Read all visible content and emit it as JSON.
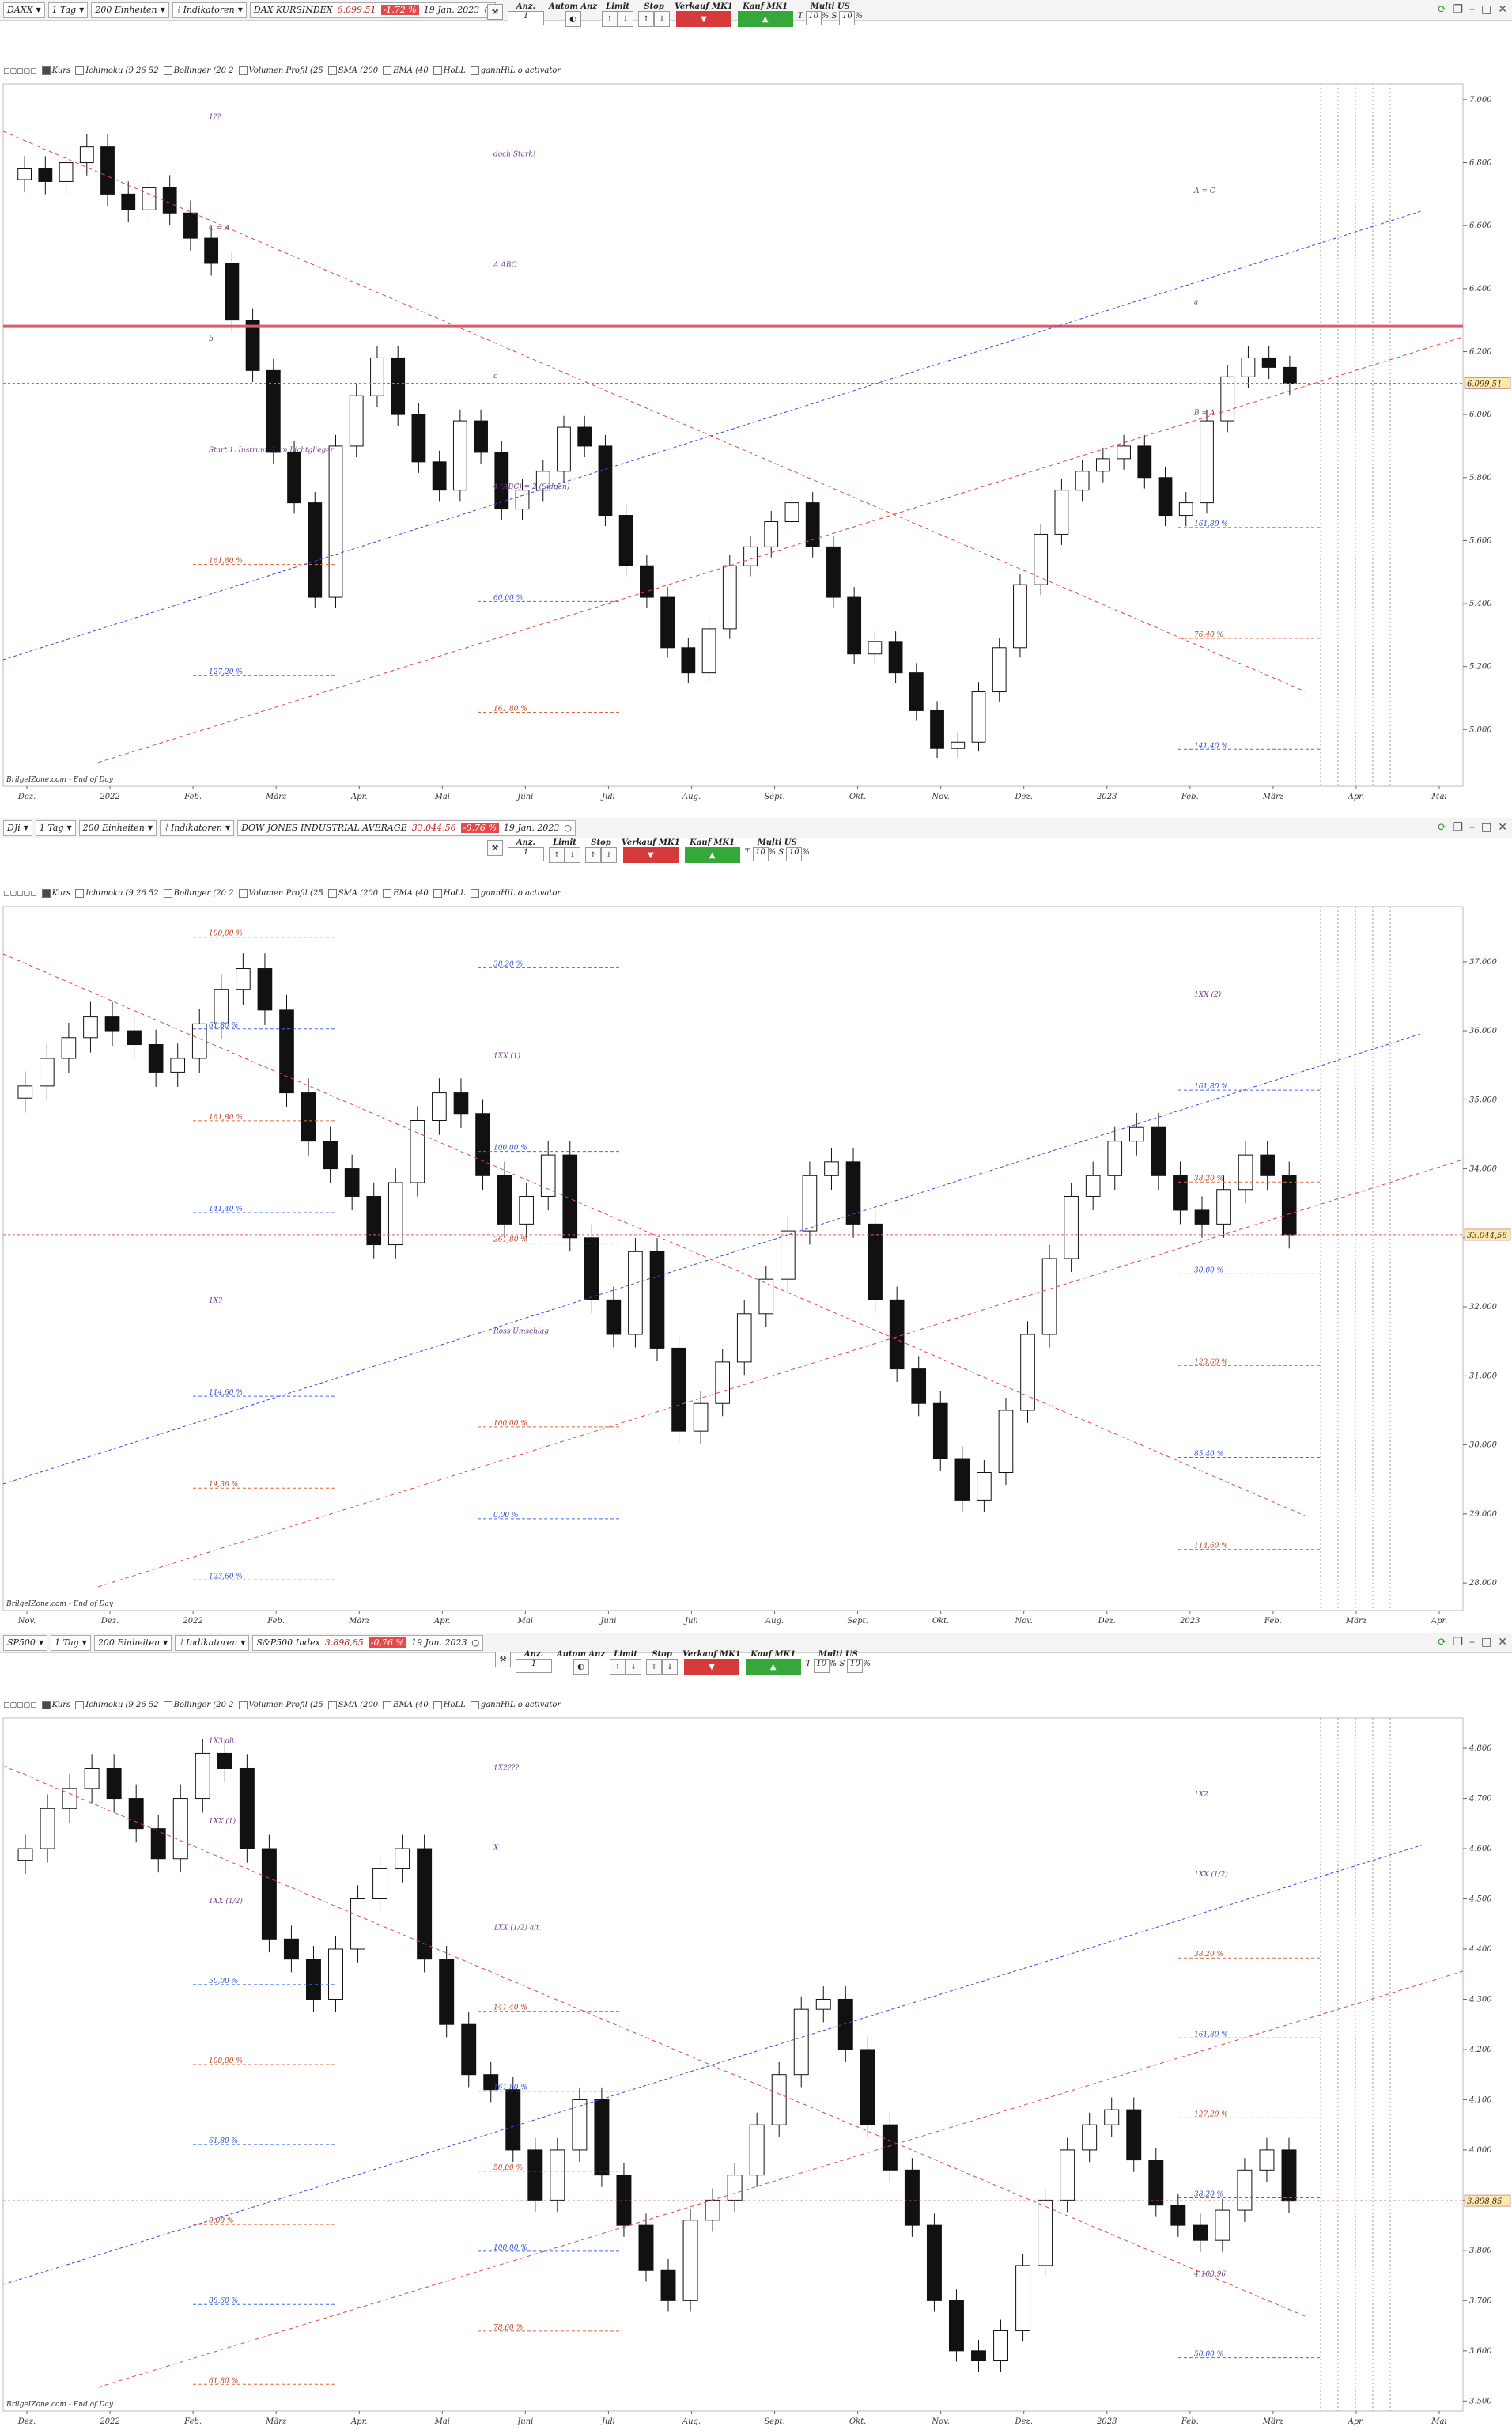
{
  "panels": [
    {
      "symbol": "DAXX",
      "interval": "1 Tag",
      "units": "200 Einheiten",
      "indicators_btn": "Indikatoren",
      "title": "DAX KURSINDEX",
      "last": "6.099,51",
      "change": "-1,72 %",
      "date": "19 Jan. 2023",
      "order": {
        "anz": "Anz.",
        "autom": "Autom Anz",
        "limit": "Limit",
        "stop": "Stop",
        "sell": "Verkauf MK1",
        "buy": "Kauf MK1",
        "multi": "Multi US",
        "qty": "1",
        "t_lbl": "T",
        "t_val": "10",
        "s_lbl": "S",
        "s_val": "10",
        "pct": "%"
      },
      "indicators": [
        "Kurs",
        "Ichimoku (9 26 52",
        "Bollinger (20 2",
        "Volumen Profil (25",
        "SMA (200",
        "EMA (40",
        "HoLL",
        "gannHiL o activator"
      ],
      "brand": "BrilgeIZone.com - End of Day",
      "current_label": "6.099,51",
      "annotations": [
        "1??",
        "doch Stark!",
        "A = C",
        "C = A",
        "A ABC",
        "a",
        "b",
        "c",
        "B = A",
        "Start 1. Instrum.-1, m.Lichtglieger",
        "4 (ABC) = 2 (Sidgen)",
        "161,80 %",
        "161,80 %",
        "60,00 %",
        "76,40 %",
        "127,20 %",
        "161,80 %",
        "141,40 %"
      ],
      "chart_data": {
        "type": "candlestick",
        "title": "DAX KURSINDEX",
        "x_ticks": [
          "Dez.",
          "2022",
          "Feb.",
          "März",
          "Apr.",
          "Mai",
          "Juni",
          "Juli",
          "Aug.",
          "Sept.",
          "Okt.",
          "Nov.",
          "Dez.",
          "2023",
          "Feb.",
          "März",
          "Apr.",
          "Mai"
        ],
        "y_ticks": [
          7000,
          6800,
          6600,
          6400,
          6200,
          6000,
          5800,
          5600,
          5400,
          5200,
          5000
        ],
        "ylim": [
          4820,
          7050
        ],
        "resistance_level": 6280,
        "last_price": 6099.51,
        "close": [
          6780,
          6740,
          6800,
          6850,
          6700,
          6650,
          6720,
          6640,
          6560,
          6480,
          6300,
          6140,
          5880,
          5720,
          5420,
          5900,
          6060,
          6180,
          6000,
          5850,
          5760,
          5980,
          5880,
          5700,
          5760,
          5820,
          5960,
          5900,
          5680,
          5520,
          5420,
          5260,
          5180,
          5320,
          5520,
          5580,
          5660,
          5720,
          5580,
          5420,
          5240,
          5280,
          5180,
          5060,
          4940,
          4960,
          5120,
          5260,
          5460,
          5620,
          5760,
          5820,
          5860,
          5900,
          5800,
          5680,
          5720,
          5980,
          6120,
          6180,
          6150,
          6099
        ]
      }
    },
    {
      "symbol": "DJi",
      "interval": "1 Tag",
      "units": "200 Einheiten",
      "indicators_btn": "Indikatoren",
      "title": "DOW JONES INDUSTRIAL AVERAGE",
      "last": "33.044,56",
      "change": "-0,76 %",
      "date": "19 Jan. 2023",
      "order": {
        "anz": "Anz.",
        "limit": "Limit",
        "stop": "Stop",
        "sell": "Verkauf MK1",
        "buy": "Kauf MK1",
        "multi": "Multi US",
        "qty": "1",
        "t_lbl": "T",
        "t_val": "10",
        "s_lbl": "S",
        "s_val": "10",
        "pct": "%"
      },
      "indicators": [
        "Kurs",
        "Ichimoku (9 26 52",
        "Bollinger (20 2",
        "Volumen Profil (25",
        "SMA (200",
        "EMA (40",
        "HoLL",
        "gannHiL o activator"
      ],
      "brand": "BrilgeIZone.com - End of Day",
      "current_label": "33.044,56",
      "annotations": [
        "100,00 %",
        "38,20 %",
        "1XX (2)",
        "61,80 %",
        "1XX (1)",
        "161,80 %",
        "161,80 %",
        "100,00 %",
        "38,20 %",
        "141,40 %",
        "261,80 %",
        "30,00 %",
        "1X?",
        "Ross Umschlag",
        "123,60 %",
        "114,60 %",
        "100,00 %",
        "85,40 %",
        "14,36 %",
        "0,00 %",
        "114,60 %",
        "123,60 %"
      ],
      "chart_data": {
        "type": "candlestick",
        "title": "DOW JONES INDUSTRIAL AVERAGE",
        "x_ticks": [
          "Nov.",
          "Dez.",
          "2022",
          "Feb.",
          "März",
          "Apr.",
          "Mai",
          "Juni",
          "Juli",
          "Aug.",
          "Sept.",
          "Okt.",
          "Nov.",
          "Dez.",
          "2023",
          "Feb.",
          "März",
          "Apr."
        ],
        "y_ticks": [
          37000,
          36000,
          35000,
          34000,
          33000,
          32000,
          31000,
          30000,
          29000,
          28000
        ],
        "ylim": [
          27600,
          37800
        ],
        "last_price": 33044.56,
        "close": [
          35200,
          35600,
          35900,
          36200,
          36000,
          35800,
          35400,
          35600,
          36100,
          36600,
          36900,
          36300,
          35100,
          34400,
          34000,
          33600,
          32900,
          33800,
          34700,
          35100,
          34800,
          33900,
          33200,
          33600,
          34200,
          33000,
          32100,
          31600,
          32800,
          31400,
          30200,
          30600,
          31200,
          31900,
          32400,
          33100,
          33900,
          34100,
          33200,
          32100,
          31100,
          30600,
          29800,
          29200,
          29600,
          30500,
          31600,
          32700,
          33600,
          33900,
          34400,
          34600,
          33900,
          33400,
          33200,
          33700,
          34200,
          33900,
          33044
        ]
      }
    },
    {
      "symbol": "SP500",
      "interval": "1 Tag",
      "units": "200 Einheiten",
      "indicators_btn": "Indikatoren",
      "title": "S&P500 Index",
      "last": "3.898,85",
      "change": "-0,76 %",
      "date": "19 Jan. 2023",
      "order": {
        "anz": "Anz.",
        "autom": "Autom Anz",
        "limit": "Limit",
        "stop": "Stop",
        "sell": "Verkauf MK1",
        "buy": "Kauf MK1",
        "multi": "Multi US",
        "qty": "1",
        "t_lbl": "T",
        "t_val": "10",
        "s_lbl": "S",
        "s_val": "10",
        "pct": "%"
      },
      "indicators": [
        "Kurs",
        "Ichimoku (9 26 52",
        "Bollinger (20 2",
        "Volumen Profil (25",
        "SMA (200",
        "EMA (40",
        "HoLL",
        "gannHiL o activator"
      ],
      "brand": "BrilgeIZone.com - End of Day",
      "current_label": "3.898,85",
      "annotations": [
        "1X3 alt.",
        "1X2???",
        "1X2",
        "1XX (1)",
        "X",
        "1XX (1/2)",
        "1XX (1/2)",
        "1XX (1/2) alt.",
        "38,20 %",
        "50,00 %",
        "141,40 %",
        "161,80 %",
        "100,00 %",
        "161,80 %",
        "127,20 %",
        "61,80 %",
        "50,00 %",
        "38,20 %",
        "0,00 %",
        "100,00 %",
        "4.100,96",
        "88,60 %",
        "78,60 %",
        "50,00 %",
        "61,80 %"
      ],
      "chart_data": {
        "type": "candlestick",
        "title": "S&P500 Index",
        "x_ticks": [
          "Dez.",
          "2022",
          "Feb.",
          "März",
          "Apr.",
          "Mai",
          "Juni",
          "Juli",
          "Aug.",
          "Sept.",
          "Okt.",
          "Nov.",
          "Dez.",
          "2023",
          "Feb.",
          "März",
          "Apr.",
          "Mai"
        ],
        "y_ticks": [
          4800,
          4700,
          4600,
          4500,
          4400,
          4300,
          4200,
          4100,
          4000,
          3900,
          3800,
          3700,
          3600,
          3500
        ],
        "ylim": [
          3480,
          4860
        ],
        "last_price": 3898.85,
        "close": [
          4600,
          4680,
          4720,
          4760,
          4700,
          4640,
          4580,
          4700,
          4790,
          4760,
          4600,
          4420,
          4380,
          4300,
          4400,
          4500,
          4560,
          4600,
          4380,
          4250,
          4150,
          4120,
          4000,
          3900,
          4000,
          4100,
          3950,
          3850,
          3760,
          3700,
          3860,
          3900,
          3950,
          4050,
          4150,
          4280,
          4300,
          4200,
          4050,
          3960,
          3850,
          3700,
          3600,
          3580,
          3640,
          3770,
          3900,
          4000,
          4050,
          4080,
          3980,
          3890,
          3850,
          3820,
          3880,
          3960,
          4000,
          3898
        ]
      }
    }
  ]
}
